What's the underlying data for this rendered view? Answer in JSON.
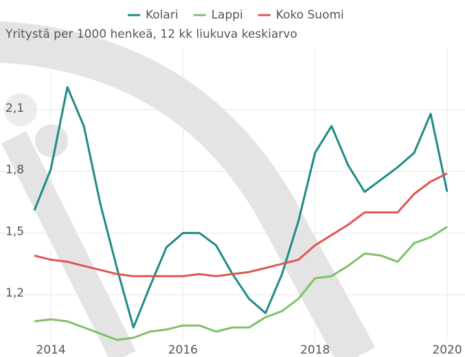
{
  "chart_data": {
    "type": "line",
    "subtitle": "Yritystä per 1000 henkeä, 12 kk liukuva keskiarvo",
    "x": [
      2013.75,
      2014,
      2014.25,
      2014.5,
      2014.75,
      2015,
      2015.25,
      2015.5,
      2015.75,
      2016,
      2016.25,
      2016.5,
      2016.75,
      2017,
      2017.25,
      2017.5,
      2017.75,
      2018,
      2018.25,
      2018.5,
      2018.75,
      2019,
      2019.25,
      2019.5,
      2019.75,
      2020
    ],
    "series": [
      {
        "name": "Kolari",
        "color": "#1f8a85",
        "values": [
          1.61,
          1.81,
          2.21,
          2.02,
          1.64,
          1.33,
          1.04,
          1.24,
          1.43,
          1.5,
          1.5,
          1.44,
          1.3,
          1.18,
          1.11,
          1.3,
          1.56,
          1.89,
          2.02,
          1.83,
          1.7,
          1.76,
          1.82,
          1.89,
          2.08,
          1.7
        ]
      },
      {
        "name": "Lappi",
        "color": "#7dc06a",
        "values": [
          1.07,
          1.08,
          1.07,
          1.04,
          1.01,
          0.98,
          0.99,
          1.02,
          1.03,
          1.05,
          1.05,
          1.02,
          1.04,
          1.04,
          1.09,
          1.12,
          1.18,
          1.28,
          1.29,
          1.34,
          1.4,
          1.39,
          1.36,
          1.45,
          1.48,
          1.53
        ]
      },
      {
        "name": "Koko Suomi",
        "color": "#e05550",
        "values": [
          1.39,
          1.37,
          1.36,
          1.34,
          1.32,
          1.3,
          1.29,
          1.29,
          1.29,
          1.29,
          1.3,
          1.29,
          1.3,
          1.31,
          1.33,
          1.35,
          1.37,
          1.44,
          1.49,
          1.54,
          1.6,
          1.6,
          1.6,
          1.69,
          1.75,
          1.79
        ]
      }
    ],
    "xlim": [
      2013.23,
      2020.27
    ],
    "xticks": [
      2014,
      2016,
      2018,
      2020
    ],
    "ylim": [
      0.97,
      2.4
    ],
    "yticks": [
      {
        "value": 1.2,
        "label": "1,2"
      },
      {
        "value": 1.5,
        "label": "1,5"
      },
      {
        "value": 1.8,
        "label": "1,8"
      },
      {
        "value": 2.1,
        "label": "2,1"
      }
    ],
    "grid": true
  }
}
